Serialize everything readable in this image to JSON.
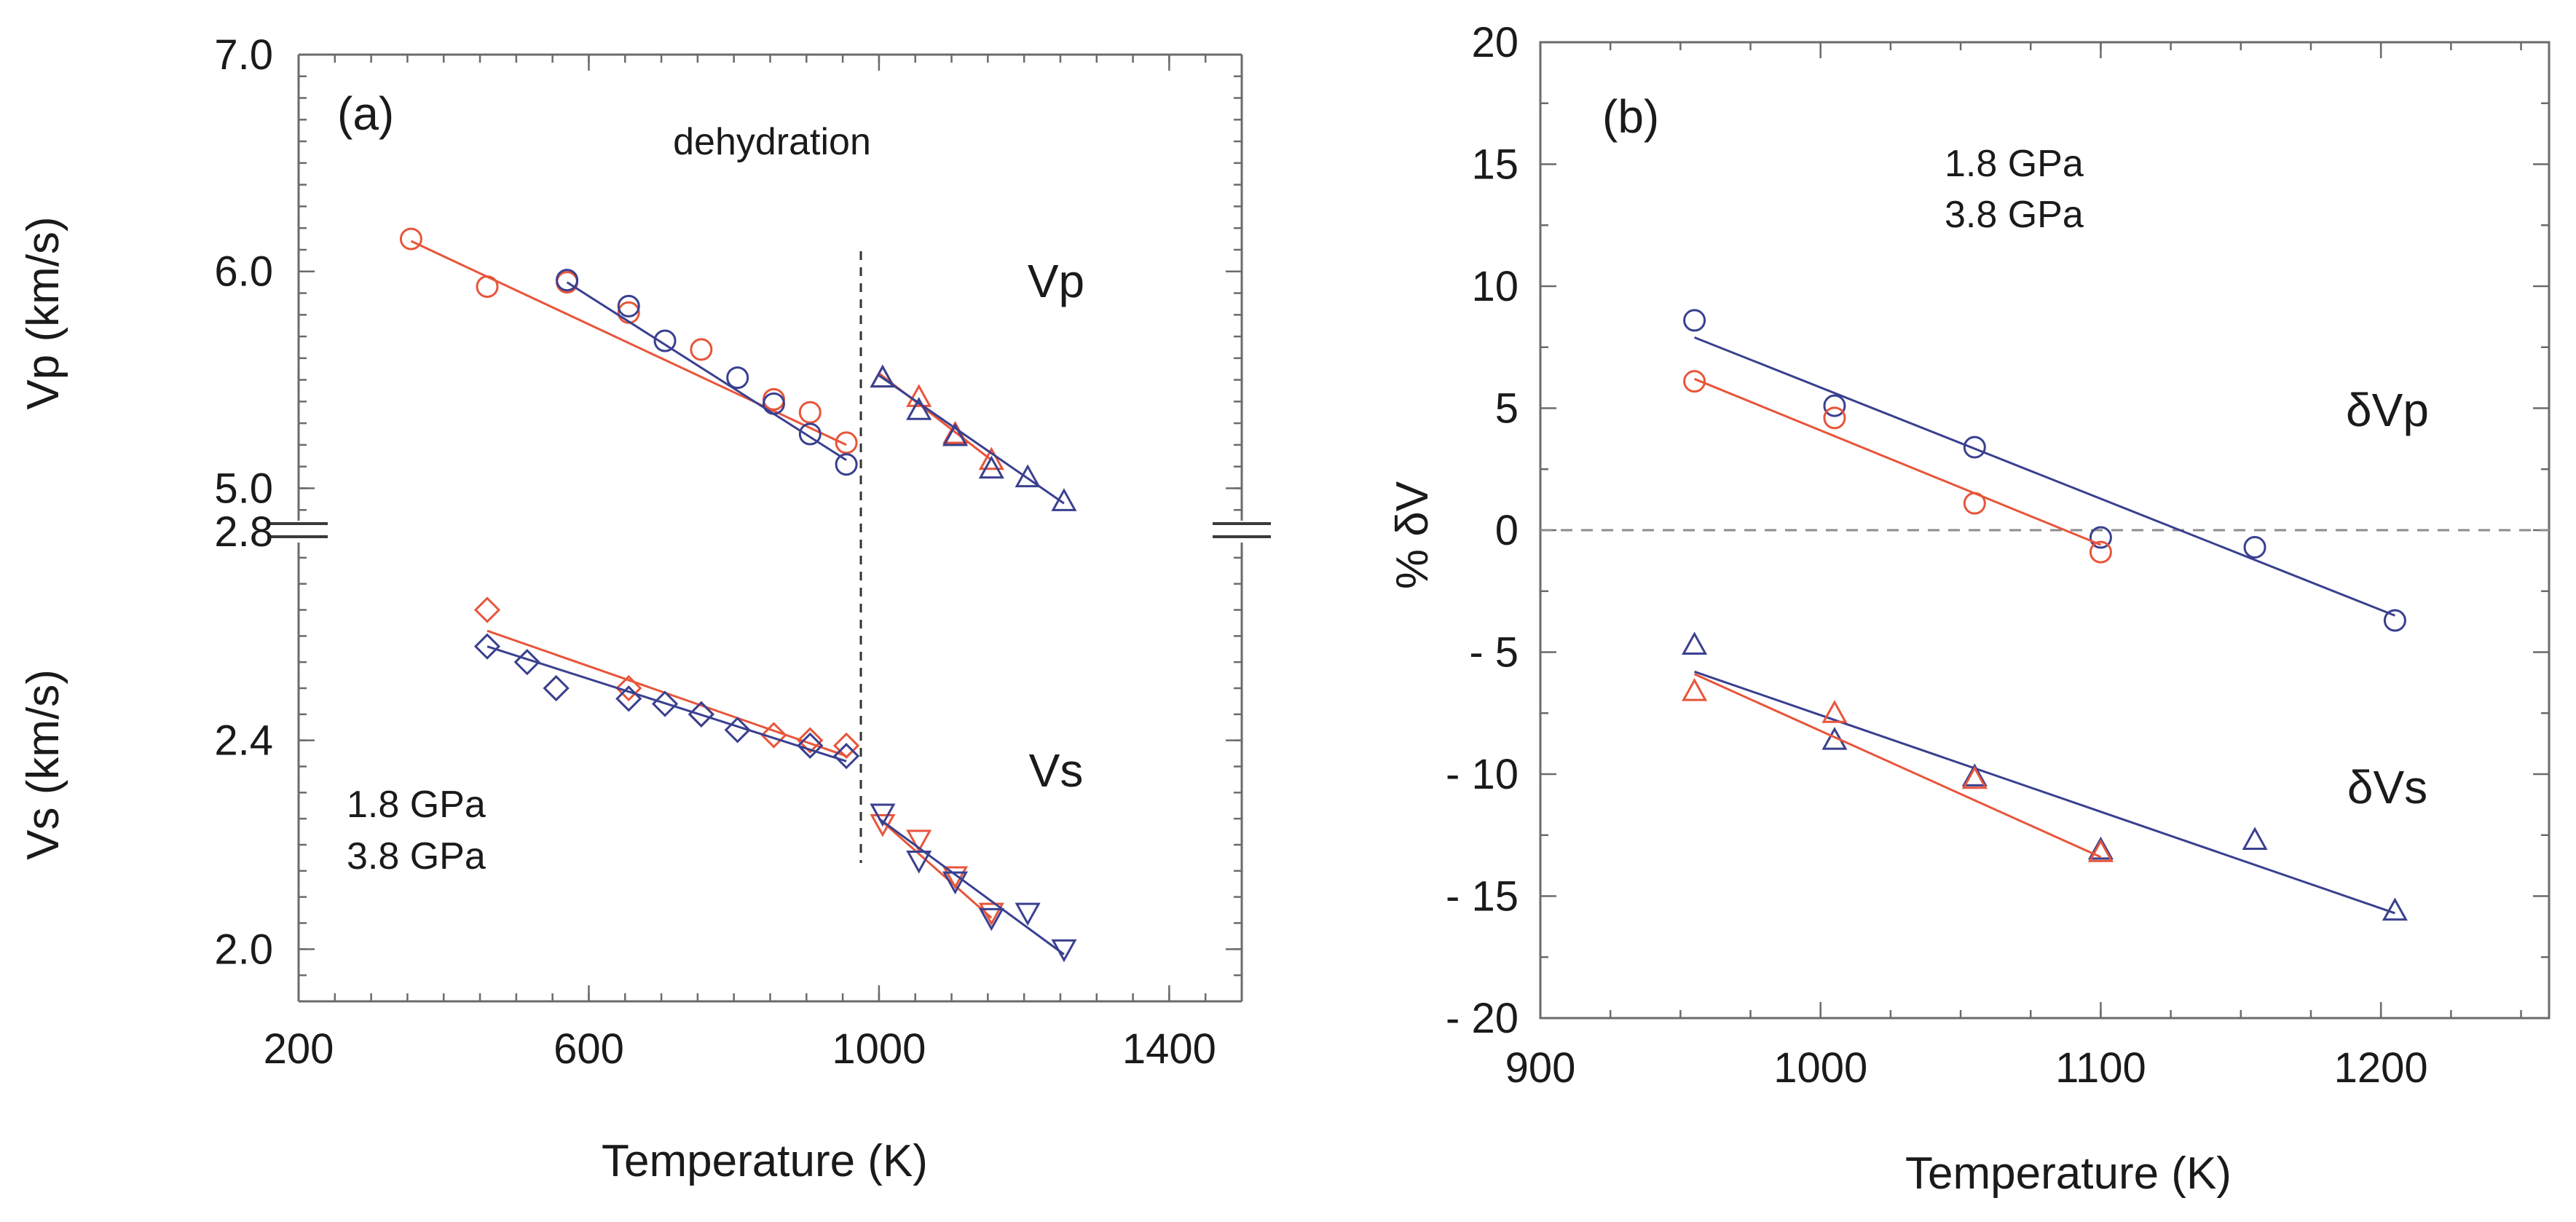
{
  "colors": {
    "red": "#e8553a",
    "blue": "#39408f",
    "axis": "#6b6b6b",
    "text": "#1a1a1a",
    "dash": "#8c8c8c"
  },
  "chart_data": [
    {
      "id": "a",
      "type": "scatter",
      "panel_label": "(a)",
      "xlabel": "Temperature (K)",
      "xlim": [
        200,
        1500
      ],
      "x_ticks": [
        200,
        600,
        1000,
        1400
      ],
      "annotation_dehydration": "dehydration",
      "dehydration_temperature": 975,
      "legend": [
        {
          "name": "1.8 GPa",
          "color": "#e8553a"
        },
        {
          "name": "3.8 GPa",
          "color": "#39408f"
        }
      ],
      "upper": {
        "ylabel": "Vp (km/s)",
        "ylim": [
          4.8,
          7.0
        ],
        "y_ticks": [
          "5.0",
          "6.0",
          "7.0"
        ],
        "y_tick_values": [
          5.0,
          6.0,
          7.0
        ],
        "label": "Vp",
        "series": [
          {
            "name": "1.8 GPa before",
            "color": "red",
            "marker": "circle",
            "points": [
              [
                355,
                6.15
              ],
              [
                460,
                5.93
              ],
              [
                570,
                5.95
              ],
              [
                655,
                5.81
              ],
              [
                755,
                5.64
              ],
              [
                855,
                5.41
              ],
              [
                905,
                5.35
              ],
              [
                955,
                5.21
              ]
            ],
            "fit": [
              [
                355,
                6.14
              ],
              [
                955,
                5.2
              ]
            ]
          },
          {
            "name": "3.8 GPa before",
            "color": "blue",
            "marker": "circle",
            "points": [
              [
                570,
                5.96
              ],
              [
                655,
                5.84
              ],
              [
                705,
                5.68
              ],
              [
                805,
                5.51
              ],
              [
                855,
                5.39
              ],
              [
                905,
                5.25
              ],
              [
                955,
                5.11
              ]
            ],
            "fit": [
              [
                570,
                5.95
              ],
              [
                955,
                5.13
              ]
            ]
          },
          {
            "name": "1.8 GPa after",
            "color": "red",
            "marker": "triangle-up",
            "points": [
              [
                1005,
                5.51
              ],
              [
                1055,
                5.42
              ],
              [
                1105,
                5.25
              ],
              [
                1155,
                5.13
              ]
            ],
            "fit": [
              [
                1000,
                5.53
              ],
              [
                1155,
                5.13
              ]
            ]
          },
          {
            "name": "3.8 GPa after",
            "color": "blue",
            "marker": "triangle-up",
            "points": [
              [
                1005,
                5.51
              ],
              [
                1055,
                5.36
              ],
              [
                1105,
                5.24
              ],
              [
                1155,
                5.09
              ],
              [
                1205,
                5.05
              ],
              [
                1255,
                4.94
              ]
            ],
            "fit": [
              [
                1000,
                5.52
              ],
              [
                1255,
                4.93
              ]
            ]
          }
        ]
      },
      "lower": {
        "ylabel": "Vs (km/s)",
        "ylim": [
          1.9,
          2.8
        ],
        "y_ticks": [
          "2.0",
          "2.4",
          "2.8"
        ],
        "y_tick_values": [
          2.0,
          2.4,
          2.8
        ],
        "label": "Vs",
        "series": [
          {
            "name": "1.8 GPa before",
            "color": "red",
            "marker": "diamond",
            "points": [
              [
                460,
                2.65
              ],
              [
                555,
                2.5
              ],
              [
                655,
                2.5
              ],
              [
                755,
                2.45
              ],
              [
                855,
                2.41
              ],
              [
                905,
                2.4
              ],
              [
                955,
                2.39
              ]
            ],
            "fit": [
              [
                460,
                2.61
              ],
              [
                955,
                2.37
              ]
            ]
          },
          {
            "name": "3.8 GPa before",
            "color": "blue",
            "marker": "diamond",
            "points": [
              [
                460,
                2.58
              ],
              [
                515,
                2.55
              ],
              [
                555,
                2.5
              ],
              [
                655,
                2.48
              ],
              [
                705,
                2.47
              ],
              [
                755,
                2.45
              ],
              [
                805,
                2.42
              ],
              [
                905,
                2.39
              ],
              [
                955,
                2.37
              ]
            ],
            "fit": [
              [
                460,
                2.58
              ],
              [
                955,
                2.36
              ]
            ]
          },
          {
            "name": "1.8 GPa after",
            "color": "red",
            "marker": "triangle-down",
            "points": [
              [
                1005,
                2.24
              ],
              [
                1055,
                2.21
              ],
              [
                1105,
                2.14
              ],
              [
                1155,
                2.07
              ]
            ],
            "fit": [
              [
                1000,
                2.25
              ],
              [
                1155,
                2.06
              ]
            ]
          },
          {
            "name": "3.8 GPa after",
            "color": "blue",
            "marker": "triangle-down",
            "points": [
              [
                1005,
                2.26
              ],
              [
                1055,
                2.17
              ],
              [
                1105,
                2.13
              ],
              [
                1155,
                2.06
              ],
              [
                1205,
                2.07
              ],
              [
                1255,
                2.0
              ]
            ],
            "fit": [
              [
                1000,
                2.25
              ],
              [
                1255,
                1.99
              ]
            ]
          }
        ]
      }
    },
    {
      "id": "b",
      "type": "scatter",
      "panel_label": "(b)",
      "xlabel": "Temperature (K)",
      "ylabel": "% δV",
      "xlim": [
        900,
        1260
      ],
      "ylim": [
        -20,
        20
      ],
      "x_ticks": [
        900,
        1000,
        1100,
        1200
      ],
      "y_ticks": [
        20,
        15,
        10,
        5,
        0,
        -5,
        -10,
        -15,
        -20
      ],
      "y_tick_labels": [
        "20",
        "15",
        "10",
        "5",
        "0",
        "- 5",
        "- 10",
        "- 15",
        "- 20"
      ],
      "zero_line": true,
      "legend": [
        {
          "name": "1.8 GPa",
          "color": "#e8553a"
        },
        {
          "name": "3.8 GPa",
          "color": "#39408f"
        }
      ],
      "label_dVp": "δVp",
      "label_dVs": "δVs",
      "series": [
        {
          "name": "δVp 3.8 GPa",
          "color": "blue",
          "marker": "circle",
          "points": [
            [
              955,
              8.6
            ],
            [
              1005,
              5.1
            ],
            [
              1055,
              3.4
            ],
            [
              1100,
              -0.3
            ],
            [
              1155,
              -0.7
            ],
            [
              1205,
              -3.7
            ]
          ],
          "fit": [
            [
              955,
              7.9
            ],
            [
              1205,
              -3.5
            ]
          ]
        },
        {
          "name": "δVp 1.8 GPa",
          "color": "red",
          "marker": "circle",
          "points": [
            [
              955,
              6.1
            ],
            [
              1005,
              4.6
            ],
            [
              1055,
              1.1
            ],
            [
              1100,
              -0.9
            ]
          ],
          "fit": [
            [
              955,
              6.2
            ],
            [
              1100,
              -0.6
            ]
          ]
        },
        {
          "name": "δVs 3.8 GPa",
          "color": "blue",
          "marker": "triangle-up",
          "points": [
            [
              955,
              -4.7
            ],
            [
              1005,
              -8.6
            ],
            [
              1055,
              -10.1
            ],
            [
              1100,
              -13.1
            ],
            [
              1155,
              -12.7
            ],
            [
              1205,
              -15.6
            ]
          ],
          "fit": [
            [
              955,
              -5.8
            ],
            [
              1205,
              -15.7
            ]
          ]
        },
        {
          "name": "δVs 1.8 GPa",
          "color": "red",
          "marker": "triangle-up",
          "points": [
            [
              955,
              -6.6
            ],
            [
              1005,
              -7.5
            ],
            [
              1055,
              -10.2
            ],
            [
              1100,
              -13.2
            ]
          ],
          "fit": [
            [
              955,
              -5.9
            ],
            [
              1100,
              -13.4
            ]
          ]
        }
      ]
    }
  ]
}
